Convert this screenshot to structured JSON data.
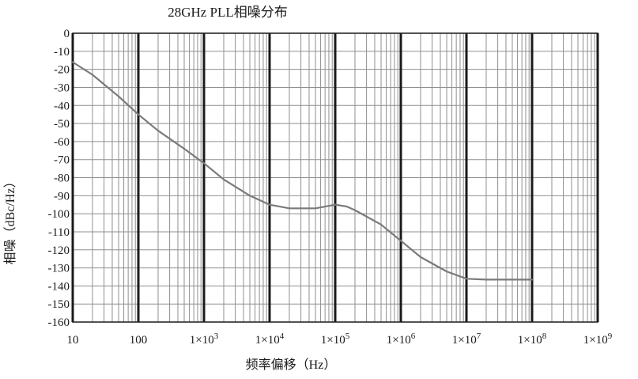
{
  "chart_data": {
    "type": "line",
    "title": "28GHz PLL相噪分布",
    "xlabel": "频率偏移（Hz）",
    "ylabel": "相噪（dBc/Hz）",
    "x_scale": "log",
    "xlim": [
      10,
      1000000000
    ],
    "ylim": [
      -160,
      0
    ],
    "x_ticks": [
      {
        "value": 10,
        "label": "10",
        "exp": ""
      },
      {
        "value": 100,
        "label": "100",
        "exp": ""
      },
      {
        "value": 1000,
        "label": "1×10",
        "exp": "3"
      },
      {
        "value": 10000,
        "label": "1×10",
        "exp": "4"
      },
      {
        "value": 100000,
        "label": "1×10",
        "exp": "5"
      },
      {
        "value": 1000000,
        "label": "1×10",
        "exp": "6"
      },
      {
        "value": 10000000,
        "label": "1×10",
        "exp": "7"
      },
      {
        "value": 100000000,
        "label": "1×10",
        "exp": "8"
      },
      {
        "value": 1000000000,
        "label": "1×10",
        "exp": "9"
      }
    ],
    "y_ticks": [
      0,
      -10,
      -20,
      -30,
      -40,
      -50,
      -60,
      -70,
      -80,
      -90,
      -100,
      -110,
      -120,
      -130,
      -140,
      -150,
      -160
    ],
    "grid": true,
    "series": [
      {
        "color": "#7a7a7a",
        "x": [
          10,
          20,
          50,
          100,
          200,
          500,
          1000,
          2000,
          5000,
          10000,
          20000,
          50000,
          100000,
          150000,
          200000,
          500000,
          1000000,
          2000000,
          5000000,
          10000000,
          20000000,
          50000000,
          100000000
        ],
        "y": [
          -16,
          -23,
          -35,
          -45,
          -54,
          -64,
          -72,
          -81,
          -90,
          -95,
          -97,
          -97,
          -95,
          -96,
          -98,
          -106,
          -115,
          -124,
          -132,
          -136,
          -136.5,
          -136.5,
          -136.5
        ]
      }
    ]
  }
}
